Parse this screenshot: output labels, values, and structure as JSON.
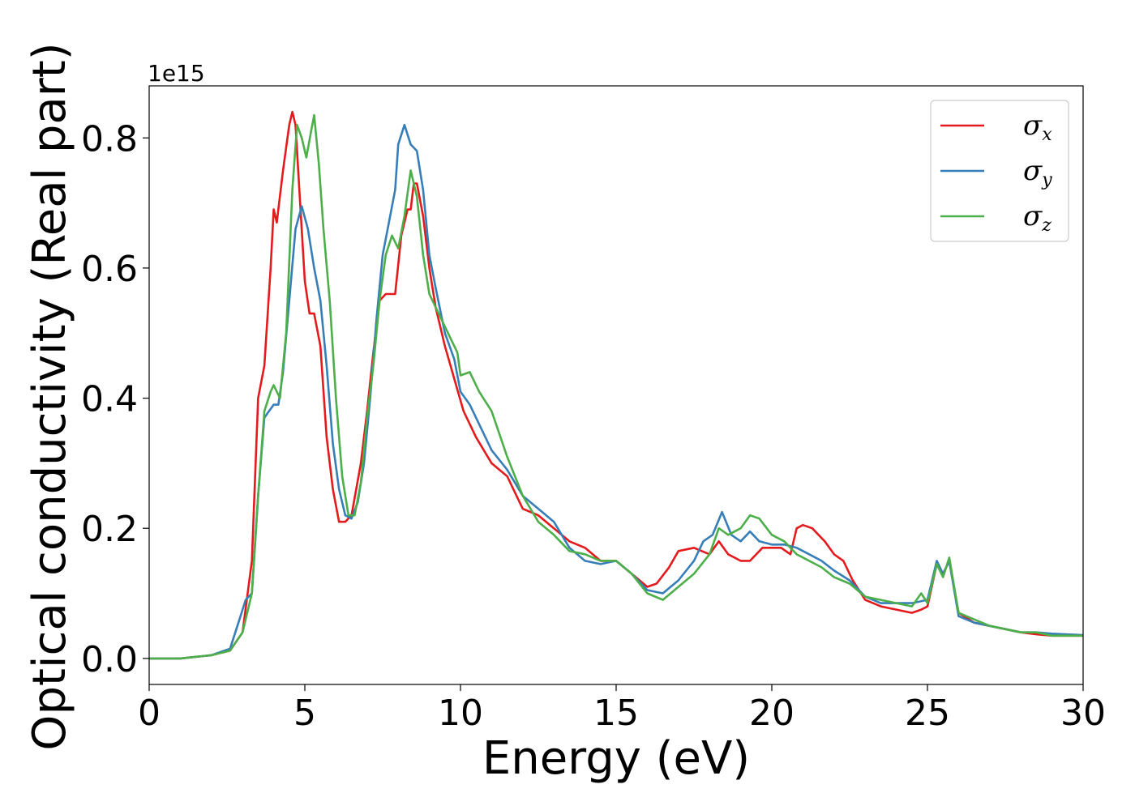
{
  "chart_data": {
    "type": "line",
    "xlabel": "Energy (eV)",
    "ylabel": "Optical conductivity (Real part)",
    "y_offset_label": "1e15",
    "xlim": [
      0,
      30
    ],
    "ylim": [
      -0.04,
      0.88
    ],
    "xticks": [
      0,
      5,
      10,
      15,
      20,
      25,
      30
    ],
    "yticks": [
      0.0,
      0.2,
      0.4,
      0.6,
      0.8
    ],
    "grid": false,
    "legend_position": "top-right",
    "series": [
      {
        "name": "σ_x",
        "legend_base": "σ",
        "legend_sub": "x",
        "color": "#e41a1c",
        "points": [
          [
            0,
            0
          ],
          [
            1,
            0
          ],
          [
            2,
            0.005
          ],
          [
            2.6,
            0.012
          ],
          [
            3.0,
            0.04
          ],
          [
            3.3,
            0.15
          ],
          [
            3.5,
            0.4
          ],
          [
            3.7,
            0.45
          ],
          [
            3.9,
            0.6
          ],
          [
            4.0,
            0.69
          ],
          [
            4.1,
            0.67
          ],
          [
            4.3,
            0.75
          ],
          [
            4.5,
            0.82
          ],
          [
            4.6,
            0.84
          ],
          [
            4.7,
            0.82
          ],
          [
            4.85,
            0.7
          ],
          [
            5.0,
            0.58
          ],
          [
            5.15,
            0.53
          ],
          [
            5.3,
            0.53
          ],
          [
            5.5,
            0.48
          ],
          [
            5.7,
            0.34
          ],
          [
            5.9,
            0.26
          ],
          [
            6.1,
            0.21
          ],
          [
            6.3,
            0.21
          ],
          [
            6.5,
            0.22
          ],
          [
            6.8,
            0.3
          ],
          [
            7.0,
            0.38
          ],
          [
            7.2,
            0.47
          ],
          [
            7.4,
            0.55
          ],
          [
            7.6,
            0.56
          ],
          [
            7.9,
            0.56
          ],
          [
            8.1,
            0.65
          ],
          [
            8.3,
            0.69
          ],
          [
            8.4,
            0.69
          ],
          [
            8.5,
            0.73
          ],
          [
            8.6,
            0.73
          ],
          [
            8.8,
            0.68
          ],
          [
            9.0,
            0.6
          ],
          [
            9.2,
            0.54
          ],
          [
            9.5,
            0.48
          ],
          [
            9.8,
            0.43
          ],
          [
            10.1,
            0.38
          ],
          [
            10.5,
            0.34
          ],
          [
            11.0,
            0.3
          ],
          [
            11.5,
            0.28
          ],
          [
            12.0,
            0.23
          ],
          [
            12.5,
            0.22
          ],
          [
            13.0,
            0.2
          ],
          [
            13.5,
            0.18
          ],
          [
            14.0,
            0.17
          ],
          [
            14.5,
            0.15
          ],
          [
            15.0,
            0.15
          ],
          [
            15.5,
            0.13
          ],
          [
            16.0,
            0.11
          ],
          [
            16.3,
            0.115
          ],
          [
            16.7,
            0.14
          ],
          [
            17.0,
            0.165
          ],
          [
            17.5,
            0.17
          ],
          [
            18.0,
            0.16
          ],
          [
            18.3,
            0.18
          ],
          [
            18.6,
            0.16
          ],
          [
            19.0,
            0.15
          ],
          [
            19.3,
            0.15
          ],
          [
            19.7,
            0.17
          ],
          [
            20.0,
            0.17
          ],
          [
            20.3,
            0.17
          ],
          [
            20.6,
            0.16
          ],
          [
            20.8,
            0.2
          ],
          [
            21.0,
            0.205
          ],
          [
            21.3,
            0.2
          ],
          [
            21.7,
            0.18
          ],
          [
            22.0,
            0.16
          ],
          [
            22.3,
            0.15
          ],
          [
            22.6,
            0.12
          ],
          [
            23.0,
            0.09
          ],
          [
            23.5,
            0.08
          ],
          [
            24.0,
            0.075
          ],
          [
            24.5,
            0.07
          ],
          [
            24.8,
            0.075
          ],
          [
            25.0,
            0.08
          ],
          [
            25.3,
            0.145
          ],
          [
            25.5,
            0.13
          ],
          [
            25.7,
            0.15
          ],
          [
            26.0,
            0.07
          ],
          [
            26.5,
            0.055
          ],
          [
            27.0,
            0.05
          ],
          [
            27.5,
            0.045
          ],
          [
            28.0,
            0.04
          ],
          [
            28.5,
            0.037
          ],
          [
            29.0,
            0.035
          ],
          [
            30.0,
            0.035
          ]
        ]
      },
      {
        "name": "σ_y",
        "legend_base": "σ",
        "legend_sub": "y",
        "color": "#377eb8",
        "points": [
          [
            0,
            0
          ],
          [
            1,
            0
          ],
          [
            2,
            0.005
          ],
          [
            2.6,
            0.015
          ],
          [
            2.9,
            0.06
          ],
          [
            3.1,
            0.09
          ],
          [
            3.3,
            0.1
          ],
          [
            3.5,
            0.25
          ],
          [
            3.7,
            0.37
          ],
          [
            3.85,
            0.38
          ],
          [
            4.0,
            0.39
          ],
          [
            4.15,
            0.39
          ],
          [
            4.3,
            0.44
          ],
          [
            4.5,
            0.55
          ],
          [
            4.7,
            0.66
          ],
          [
            4.9,
            0.695
          ],
          [
            5.1,
            0.66
          ],
          [
            5.3,
            0.6
          ],
          [
            5.5,
            0.55
          ],
          [
            5.7,
            0.45
          ],
          [
            5.9,
            0.33
          ],
          [
            6.1,
            0.26
          ],
          [
            6.3,
            0.22
          ],
          [
            6.5,
            0.215
          ],
          [
            6.7,
            0.24
          ],
          [
            6.9,
            0.3
          ],
          [
            7.1,
            0.4
          ],
          [
            7.3,
            0.52
          ],
          [
            7.5,
            0.62
          ],
          [
            7.7,
            0.67
          ],
          [
            7.9,
            0.72
          ],
          [
            8.0,
            0.79
          ],
          [
            8.2,
            0.82
          ],
          [
            8.4,
            0.79
          ],
          [
            8.6,
            0.78
          ],
          [
            8.8,
            0.72
          ],
          [
            9.0,
            0.62
          ],
          [
            9.2,
            0.57
          ],
          [
            9.5,
            0.5
          ],
          [
            9.8,
            0.46
          ],
          [
            10.0,
            0.41
          ],
          [
            10.3,
            0.39
          ],
          [
            10.6,
            0.36
          ],
          [
            11.0,
            0.32
          ],
          [
            11.5,
            0.29
          ],
          [
            12.0,
            0.25
          ],
          [
            12.5,
            0.23
          ],
          [
            13.0,
            0.21
          ],
          [
            13.5,
            0.17
          ],
          [
            14.0,
            0.15
          ],
          [
            14.5,
            0.145
          ],
          [
            15.0,
            0.15
          ],
          [
            15.5,
            0.13
          ],
          [
            16.0,
            0.105
          ],
          [
            16.5,
            0.1
          ],
          [
            17.0,
            0.12
          ],
          [
            17.5,
            0.15
          ],
          [
            17.8,
            0.18
          ],
          [
            18.1,
            0.19
          ],
          [
            18.4,
            0.225
          ],
          [
            18.7,
            0.19
          ],
          [
            19.0,
            0.18
          ],
          [
            19.3,
            0.195
          ],
          [
            19.6,
            0.18
          ],
          [
            20.0,
            0.175
          ],
          [
            20.4,
            0.175
          ],
          [
            20.8,
            0.17
          ],
          [
            21.2,
            0.16
          ],
          [
            21.6,
            0.15
          ],
          [
            22.0,
            0.135
          ],
          [
            22.5,
            0.12
          ],
          [
            23.0,
            0.095
          ],
          [
            23.5,
            0.085
          ],
          [
            24.0,
            0.085
          ],
          [
            24.5,
            0.085
          ],
          [
            25.0,
            0.09
          ],
          [
            25.3,
            0.15
          ],
          [
            25.5,
            0.13
          ],
          [
            25.7,
            0.15
          ],
          [
            26.0,
            0.065
          ],
          [
            26.5,
            0.055
          ],
          [
            27.0,
            0.05
          ],
          [
            27.5,
            0.045
          ],
          [
            28.0,
            0.04
          ],
          [
            28.5,
            0.04
          ],
          [
            29.0,
            0.038
          ],
          [
            30.0,
            0.036
          ]
        ]
      },
      {
        "name": "σ_z",
        "legend_base": "σ",
        "legend_sub": "z",
        "color": "#4daf4a",
        "points": [
          [
            0,
            0
          ],
          [
            1,
            0
          ],
          [
            2,
            0.005
          ],
          [
            2.6,
            0.012
          ],
          [
            3.0,
            0.04
          ],
          [
            3.3,
            0.1
          ],
          [
            3.5,
            0.25
          ],
          [
            3.7,
            0.38
          ],
          [
            3.9,
            0.41
          ],
          [
            4.0,
            0.42
          ],
          [
            4.2,
            0.4
          ],
          [
            4.4,
            0.5
          ],
          [
            4.6,
            0.72
          ],
          [
            4.75,
            0.82
          ],
          [
            4.9,
            0.8
          ],
          [
            5.05,
            0.77
          ],
          [
            5.2,
            0.81
          ],
          [
            5.3,
            0.835
          ],
          [
            5.45,
            0.76
          ],
          [
            5.6,
            0.66
          ],
          [
            5.8,
            0.55
          ],
          [
            6.0,
            0.4
          ],
          [
            6.2,
            0.28
          ],
          [
            6.4,
            0.22
          ],
          [
            6.6,
            0.22
          ],
          [
            6.8,
            0.27
          ],
          [
            7.0,
            0.37
          ],
          [
            7.2,
            0.45
          ],
          [
            7.4,
            0.55
          ],
          [
            7.6,
            0.62
          ],
          [
            7.8,
            0.65
          ],
          [
            8.0,
            0.63
          ],
          [
            8.2,
            0.68
          ],
          [
            8.4,
            0.75
          ],
          [
            8.6,
            0.71
          ],
          [
            8.8,
            0.62
          ],
          [
            9.0,
            0.56
          ],
          [
            9.3,
            0.53
          ],
          [
            9.6,
            0.5
          ],
          [
            9.9,
            0.47
          ],
          [
            10.0,
            0.435
          ],
          [
            10.3,
            0.44
          ],
          [
            10.6,
            0.41
          ],
          [
            11.0,
            0.38
          ],
          [
            11.5,
            0.31
          ],
          [
            12.0,
            0.25
          ],
          [
            12.5,
            0.21
          ],
          [
            13.0,
            0.19
          ],
          [
            13.5,
            0.165
          ],
          [
            14.0,
            0.16
          ],
          [
            14.5,
            0.15
          ],
          [
            15.0,
            0.15
          ],
          [
            15.5,
            0.13
          ],
          [
            16.0,
            0.1
          ],
          [
            16.5,
            0.09
          ],
          [
            17.0,
            0.11
          ],
          [
            17.5,
            0.13
          ],
          [
            18.0,
            0.16
          ],
          [
            18.3,
            0.2
          ],
          [
            18.6,
            0.19
          ],
          [
            19.0,
            0.2
          ],
          [
            19.3,
            0.22
          ],
          [
            19.6,
            0.215
          ],
          [
            20.0,
            0.19
          ],
          [
            20.4,
            0.18
          ],
          [
            20.8,
            0.16
          ],
          [
            21.2,
            0.15
          ],
          [
            21.6,
            0.14
          ],
          [
            22.0,
            0.125
          ],
          [
            22.5,
            0.115
          ],
          [
            23.0,
            0.095
          ],
          [
            23.5,
            0.09
          ],
          [
            24.0,
            0.085
          ],
          [
            24.5,
            0.08
          ],
          [
            24.8,
            0.1
          ],
          [
            25.0,
            0.085
          ],
          [
            25.3,
            0.145
          ],
          [
            25.5,
            0.125
          ],
          [
            25.7,
            0.155
          ],
          [
            26.0,
            0.07
          ],
          [
            26.5,
            0.06
          ],
          [
            27.0,
            0.05
          ],
          [
            27.5,
            0.045
          ],
          [
            28.0,
            0.04
          ],
          [
            28.5,
            0.04
          ],
          [
            29.0,
            0.035
          ],
          [
            30.0,
            0.035
          ]
        ]
      }
    ]
  }
}
